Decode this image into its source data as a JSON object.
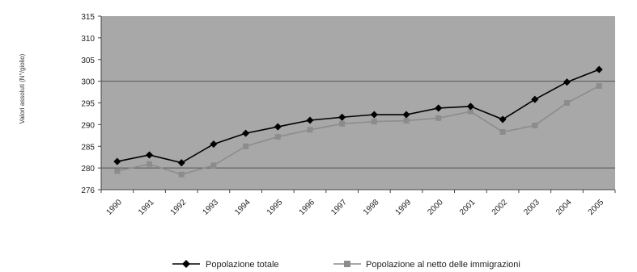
{
  "chart_data": {
    "type": "line",
    "title": "",
    "xlabel": "",
    "ylabel": "Valori assoluti (N°/giolio)",
    "ylim": [
      275,
      315
    ],
    "yticks": [
      276,
      280,
      285,
      290,
      295,
      300,
      305,
      310,
      315
    ],
    "grid": true,
    "legend_position": "bottom",
    "categories": [
      "1990",
      "1991",
      "1992",
      "1993",
      "1994",
      "1995",
      "1996",
      "1997",
      "1998",
      "1999",
      "2000",
      "2001",
      "2002",
      "2003",
      "2004",
      "2005"
    ],
    "series": [
      {
        "name": "Popolazione totale",
        "color": "#000000",
        "marker": "diamond",
        "values": [
          281.5,
          283.0,
          281.2,
          285.5,
          288.0,
          289.5,
          291.0,
          291.7,
          292.3,
          292.3,
          293.8,
          294.2,
          291.2,
          295.8,
          299.8,
          302.7
        ]
      },
      {
        "name": "Popolazione al netto delle immigrazioni",
        "color": "#8c8c8c",
        "marker": "square",
        "values": [
          279.3,
          280.9,
          278.5,
          280.6,
          285.0,
          287.2,
          288.8,
          290.2,
          290.7,
          290.9,
          291.5,
          293.0,
          288.3,
          289.8,
          295.0,
          298.9
        ]
      }
    ]
  }
}
